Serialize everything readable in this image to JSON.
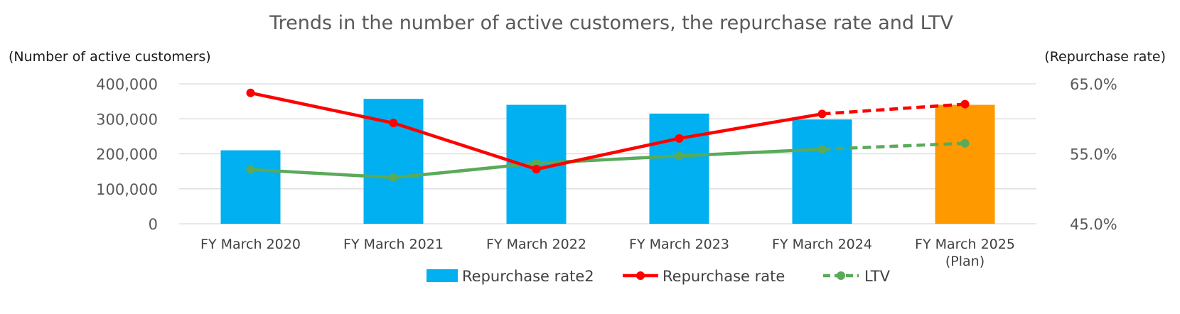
{
  "chart_data": {
    "type": "bar",
    "title": "Trends in the number of active customers, the repurchase rate and LTV",
    "ylabel": "(Number of active customers)",
    "y2label": "(Repurchase rate)",
    "ylim": [
      0,
      400000
    ],
    "y2lim": [
      45.0,
      65.0
    ],
    "y_ticks": [
      "0",
      "100,000",
      "200,000",
      "300,000",
      "400,000"
    ],
    "y2_ticks": [
      "45.0%",
      "55.0%",
      "65.0%"
    ],
    "categories": [
      "FY March 2020",
      "FY March 2021",
      "FY March 2022",
      "FY March 2023",
      "FY March 2024",
      "FY March 2025\n(Plan)"
    ],
    "grid": true,
    "legend_position": "bottom",
    "series": [
      {
        "name": "Repurchase rate2",
        "type": "bar",
        "axis": "left",
        "values": [
          210000,
          357000,
          340000,
          315000,
          298000,
          340000
        ],
        "color": "#00b0f0",
        "highlight_last_color": "#ff9900"
      },
      {
        "name": "Repurchase rate",
        "type": "line",
        "axis": "right",
        "values": [
          63.7,
          59.4,
          52.8,
          57.2,
          60.7,
          62.1
        ],
        "color": "#ff0000",
        "dashed_from_index": 4
      },
      {
        "name": "LTV",
        "type": "line",
        "axis": "left",
        "values": [
          155000,
          132000,
          173000,
          194000,
          213000,
          230000
        ],
        "color": "#5aaa5a",
        "dashed_from_index": 4
      }
    ]
  }
}
